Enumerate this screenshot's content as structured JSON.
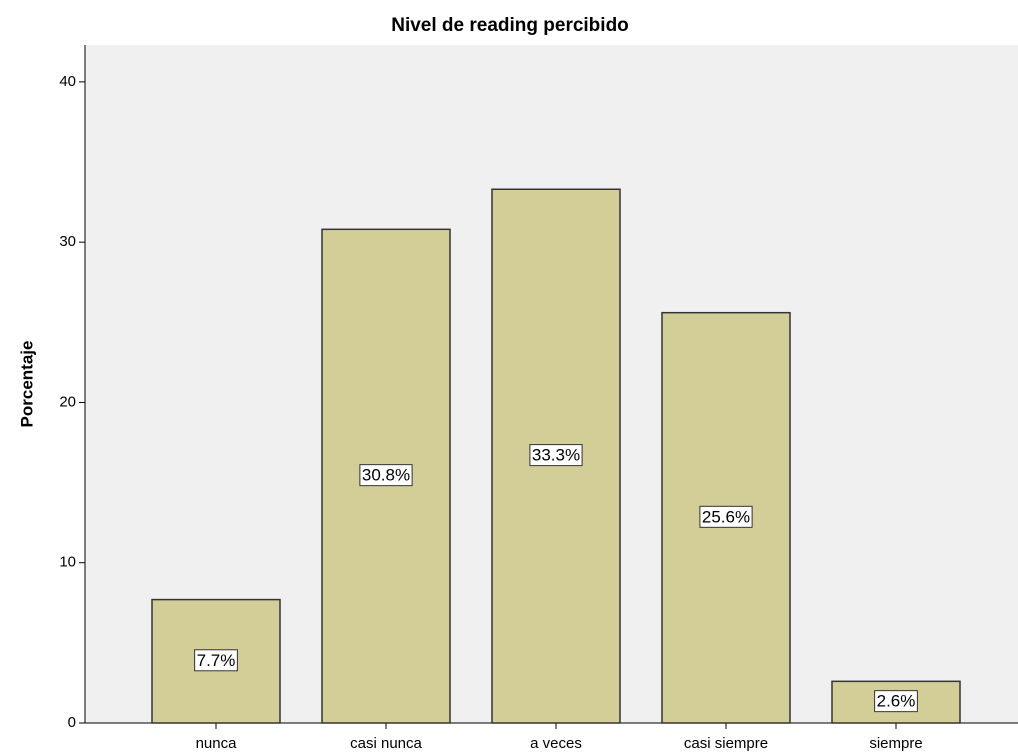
{
  "chart_data": {
    "type": "bar",
    "title": "Nivel de reading percibido",
    "ylabel": "Porcentaje",
    "categories": [
      "nunca",
      "casi nunca",
      "a veces",
      "casi siempre",
      "siempre"
    ],
    "values": [
      7.7,
      30.8,
      33.3,
      25.6,
      2.6
    ],
    "value_labels": [
      "7.7%",
      "30.8%",
      "33.3%",
      "25.6%",
      "2.6%"
    ],
    "color": "#d3ce98",
    "ylim": [
      0,
      42.3
    ],
    "yticks": [
      0,
      10,
      20,
      30,
      40
    ],
    "grid": false
  }
}
